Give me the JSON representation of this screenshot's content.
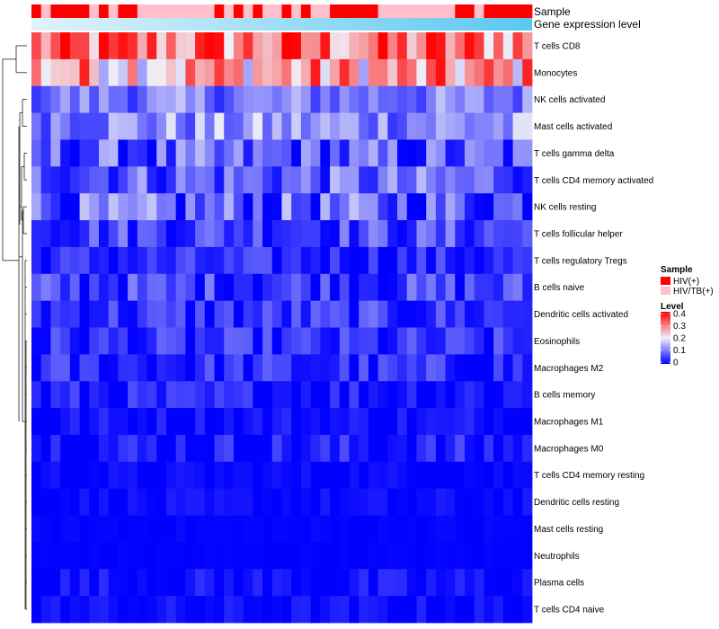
{
  "chart_data": {
    "type": "heatmap",
    "title": "",
    "annotation_tracks": [
      {
        "name": "Sample",
        "label": "Sample"
      },
      {
        "name": "Gene expression level",
        "label": "Gene expression level"
      }
    ],
    "sample_groups": [
      {
        "name": "HIV(+)",
        "color": "#ff0000"
      },
      {
        "name": "HIV/TB(+)",
        "color": "#ffc0cb"
      }
    ],
    "sample_annotation": [
      "HIV(+)",
      "HIV/TB(+)",
      "HIV(+)",
      "HIV(+)",
      "HIV(+)",
      "HIV(+)",
      "HIV/TB(+)",
      "HIV(+)",
      "HIV/TB(+)",
      "HIV(+)",
      "HIV(+)",
      "HIV/TB(+)",
      "HIV/TB(+)",
      "HIV/TB(+)",
      "HIV/TB(+)",
      "HIV/TB(+)",
      "HIV/TB(+)",
      "HIV/TB(+)",
      "HIV/TB(+)",
      "HIV(+)",
      "HIV/TB(+)",
      "HIV(+)",
      "HIV/TB(+)",
      "HIV(+)",
      "HIV/TB(+)",
      "HIV/TB(+)",
      "HIV(+)",
      "HIV/TB(+)",
      "HIV(+)",
      "HIV/TB(+)",
      "HIV/TB(+)",
      "HIV(+)",
      "HIV(+)",
      "HIV(+)",
      "HIV(+)",
      "HIV(+)",
      "HIV/TB(+)",
      "HIV/TB(+)",
      "HIV/TB(+)",
      "HIV/TB(+)",
      "HIV/TB(+)",
      "HIV/TB(+)",
      "HIV/TB(+)",
      "HIV/TB(+)",
      "HIV(+)",
      "HIV(+)",
      "HIV/TB(+)",
      "HIV(+)",
      "HIV(+)",
      "HIV(+)",
      "HIV(+)",
      "HIV(+)"
    ],
    "expression_gradient": [
      "#e0f3fb",
      "#5bc8f0"
    ],
    "rows": [
      "T cells CD8",
      "Monocytes",
      "NK cells activated",
      "Mast cells activated",
      "T cells gamma delta",
      "T cells CD4 memory activated",
      "NK cells resting",
      "T cells follicular helper",
      "T cells regulatory  Tregs",
      "B cells naive",
      "Dendritic cells activated",
      "Eosinophils",
      "Macrophages M2",
      "B cells memory",
      "Macrophages M1",
      "Macrophages M0",
      "T cells CD4 memory resting",
      "Dendritic cells resting",
      "Mast cells resting",
      "Neutrophils",
      "Plasma cells",
      "T cells CD4 naive"
    ],
    "columns": 52,
    "row_mean_estimates": [
      0.3,
      0.26,
      0.1,
      0.12,
      0.06,
      0.08,
      0.07,
      0.06,
      0.03,
      0.05,
      0.04,
      0.03,
      0.03,
      0.02,
      0.01,
      0.02,
      0.005,
      0.005,
      0.002,
      0.001,
      0.01,
      0.008
    ],
    "row_spread_estimates": [
      0.08,
      0.08,
      0.04,
      0.05,
      0.06,
      0.05,
      0.06,
      0.04,
      0.03,
      0.04,
      0.035,
      0.035,
      0.035,
      0.03,
      0.02,
      0.03,
      0.01,
      0.012,
      0.004,
      0.002,
      0.02,
      0.015
    ],
    "color_scale": {
      "legend_title": "Level",
      "min": 0,
      "max": 0.4,
      "ticks": [
        0,
        0.1,
        0.2,
        0.3,
        0.4
      ],
      "tick_labels": [
        "0",
        "0.1",
        "0.2",
        "0.3",
        "0.4"
      ],
      "low_color": "#0000ff",
      "mid_color": "#f0f0f8",
      "high_color": "#ff0000"
    },
    "legend_position": "right",
    "dendrogram": "rows"
  },
  "legend": {
    "sample_title": "Sample",
    "sample_items": [
      "HIV(+)",
      "HIV/TB(+)"
    ],
    "level_title": "Level"
  }
}
